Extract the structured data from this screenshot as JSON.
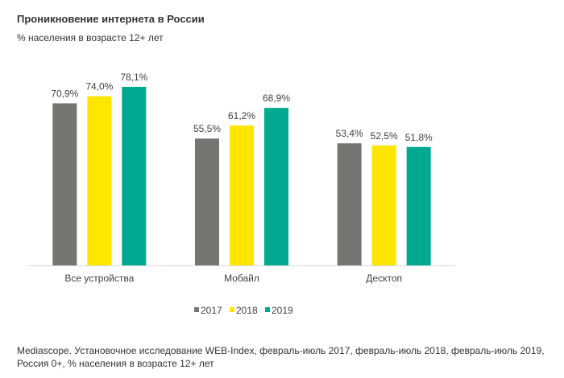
{
  "chart_data": {
    "type": "bar",
    "title": "Проникновение интернета в России",
    "subtitle": "% населения в возрасте 12+ лет",
    "categories": [
      "Все устройства",
      "Мобайл",
      "Десктоп"
    ],
    "series": [
      {
        "name": "2017",
        "values": [
          70.9,
          55.5,
          53.4
        ],
        "labels": [
          "70,9%",
          "55,5%",
          "53,4%"
        ],
        "color": "#767571"
      },
      {
        "name": "2018",
        "values": [
          74.0,
          61.2,
          52.5
        ],
        "labels": [
          "74,0%",
          "61,2%",
          "52,5%"
        ],
        "color": "#FFE600"
      },
      {
        "name": "2019",
        "values": [
          78.1,
          68.9,
          51.8
        ],
        "labels": [
          "78,1%",
          "68,9%",
          "51,8%"
        ],
        "color": "#00A990"
      }
    ],
    "ylim": [
      0,
      80
    ],
    "grid": false,
    "legend": "bottom",
    "source": "Mediascope. Установочное исследование WEB-Index, февраль-июль 2017, февраль-июль 2018, февраль-июль 2019, Россия 0+, % населения в возрасте 12+ лет"
  }
}
